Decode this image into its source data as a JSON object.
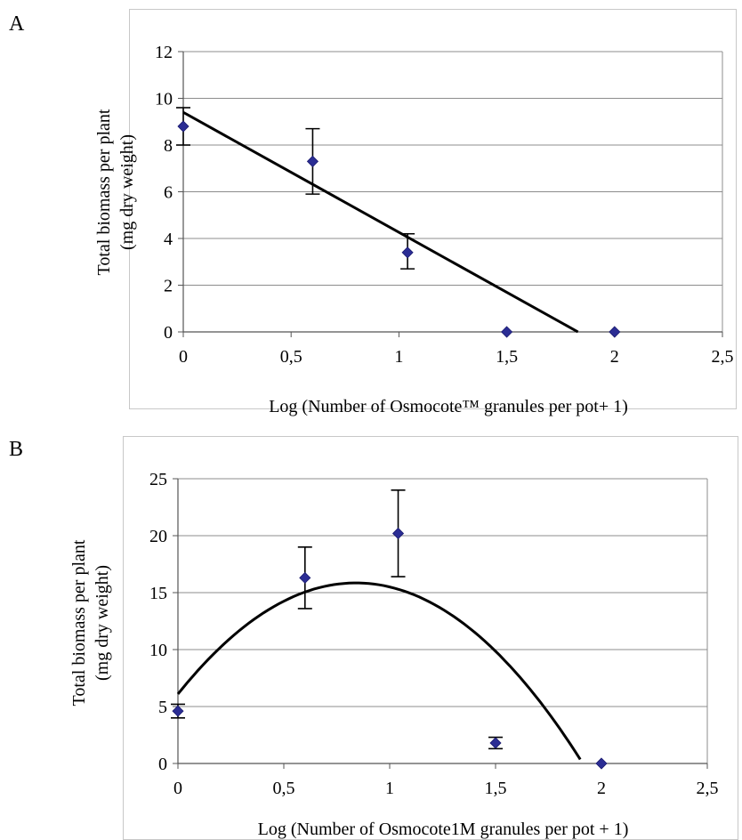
{
  "panels": [
    {
      "letter": "A"
    },
    {
      "letter": "B"
    }
  ],
  "chart_data": [
    {
      "type": "scatter",
      "panel": "A",
      "xlabel": "Log (Number of Osmocote™ granules  per pot+ 1)",
      "ylabel_line1": "Total biomass per plant",
      "ylabel_line2": "(mg dry weight)",
      "xlim": [
        0,
        2.5
      ],
      "ylim": [
        0,
        12
      ],
      "xticks": [
        0,
        0.5,
        1,
        1.5,
        2,
        2.5
      ],
      "xtick_labels": [
        "0",
        "0,5",
        "1",
        "1,5",
        "2",
        "2,5"
      ],
      "yticks": [
        0,
        2,
        4,
        6,
        8,
        10,
        12
      ],
      "ytick_labels": [
        "0",
        "2",
        "4",
        "6",
        "8",
        "10",
        "12"
      ],
      "grid": "horizontal",
      "marker_color": "#2b2d94",
      "points": [
        {
          "x": 0,
          "y": 8.8,
          "err_low": 8.0,
          "err_high": 9.6
        },
        {
          "x": 0.6,
          "y": 7.3,
          "err_low": 5.9,
          "err_high": 8.7
        },
        {
          "x": 1.04,
          "y": 3.4,
          "err_low": 2.7,
          "err_high": 4.2
        },
        {
          "x": 1.5,
          "y": 0
        },
        {
          "x": 2.0,
          "y": 0
        }
      ],
      "fit": {
        "type": "line",
        "x": [
          0,
          1.83
        ],
        "y": [
          9.4,
          0
        ]
      }
    },
    {
      "type": "scatter",
      "panel": "B",
      "xlabel": "Log (Number of Osmocote1M granules per pot + 1)",
      "ylabel_line1": "Total biomass per plant",
      "ylabel_line2": "(mg  dry weight)",
      "xlim": [
        0,
        2.5
      ],
      "ylim": [
        0,
        25
      ],
      "xticks": [
        0,
        0.5,
        1,
        1.5,
        2,
        2.5
      ],
      "xtick_labels": [
        "0",
        "0,5",
        "1",
        "1,5",
        "2",
        "2,5"
      ],
      "yticks": [
        0,
        5,
        10,
        15,
        20,
        25
      ],
      "ytick_labels": [
        "0",
        "5",
        "10",
        "15",
        "20",
        "25"
      ],
      "grid": "horizontal",
      "marker_color": "#2b2d94",
      "points": [
        {
          "x": 0,
          "y": 4.6,
          "err_low": 4.0,
          "err_high": 5.2
        },
        {
          "x": 0.6,
          "y": 16.3,
          "err_low": 13.6,
          "err_high": 19.0
        },
        {
          "x": 1.04,
          "y": 20.2,
          "err_low": 16.4,
          "err_high": 24.0
        },
        {
          "x": 1.5,
          "y": 1.8,
          "err_low": 1.3,
          "err_high": 2.3
        },
        {
          "x": 2.0,
          "y": 0
        }
      ],
      "fit": {
        "type": "quadratic",
        "a": -13.8,
        "b": 23.2,
        "c": 6.1,
        "x_range": [
          0,
          1.9
        ]
      }
    }
  ]
}
